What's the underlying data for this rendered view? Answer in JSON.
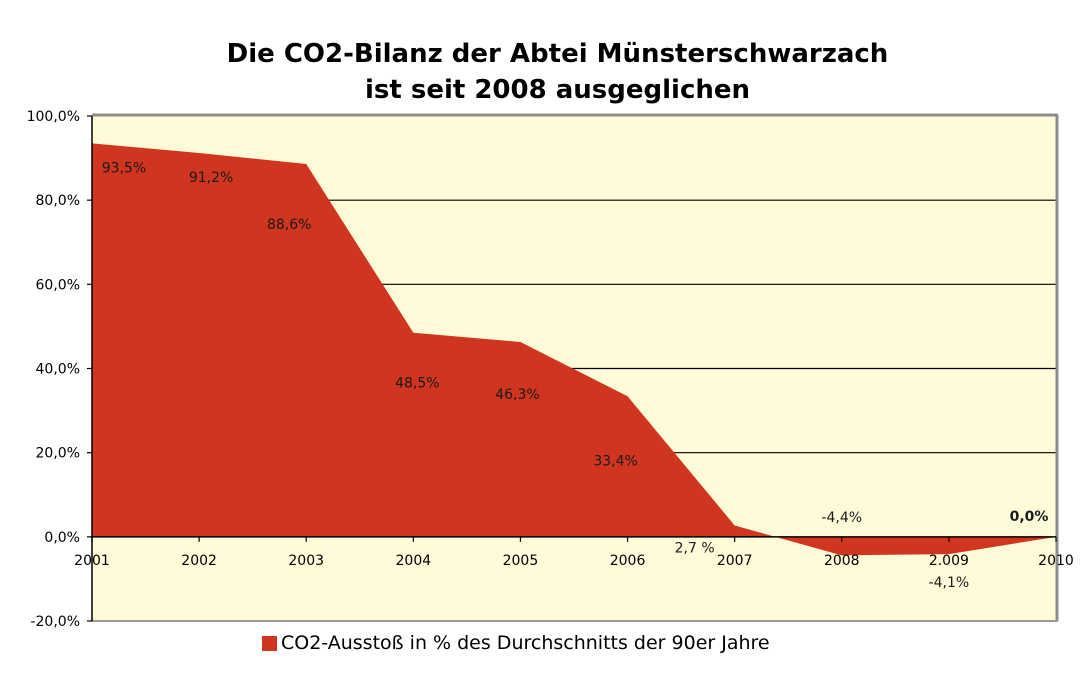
{
  "chart_data": {
    "type": "area",
    "title_lines": [
      "Die CO2-Bilanz der Abtei Münsterschwarzach",
      "ist seit 2008 ausgeglichen"
    ],
    "xlabel": "",
    "ylabel": "",
    "categories": [
      "2001",
      "2002",
      "2003",
      "2004",
      "2005",
      "2006",
      "2007",
      "2008",
      "2.009",
      "2010"
    ],
    "series": [
      {
        "name": "CO2-Ausstoß in % des Durchschnitts der 90er Jahre",
        "color": "#d03520",
        "values": [
          93.5,
          91.2,
          88.6,
          48.5,
          46.3,
          33.4,
          2.7,
          -4.4,
          -4.1,
          0.0
        ],
        "labels": [
          "93,5%",
          "91,2%",
          "88,6%",
          "48,5%",
          "46,3%",
          "33,4%",
          "2,7 %",
          "-4,4%",
          "-4,1%",
          "0,0%"
        ]
      }
    ],
    "ylim": [
      -20,
      100
    ],
    "yticks": [
      100,
      80,
      60,
      40,
      20,
      0,
      -20
    ],
    "ytick_labels": [
      "100,0%",
      "80,0%",
      "60,0%",
      "40,0%",
      "20,0%",
      "0,0%",
      "-20,0%"
    ],
    "grid": true,
    "plot_background": "#fffbd8",
    "legend_position": "bottom"
  }
}
